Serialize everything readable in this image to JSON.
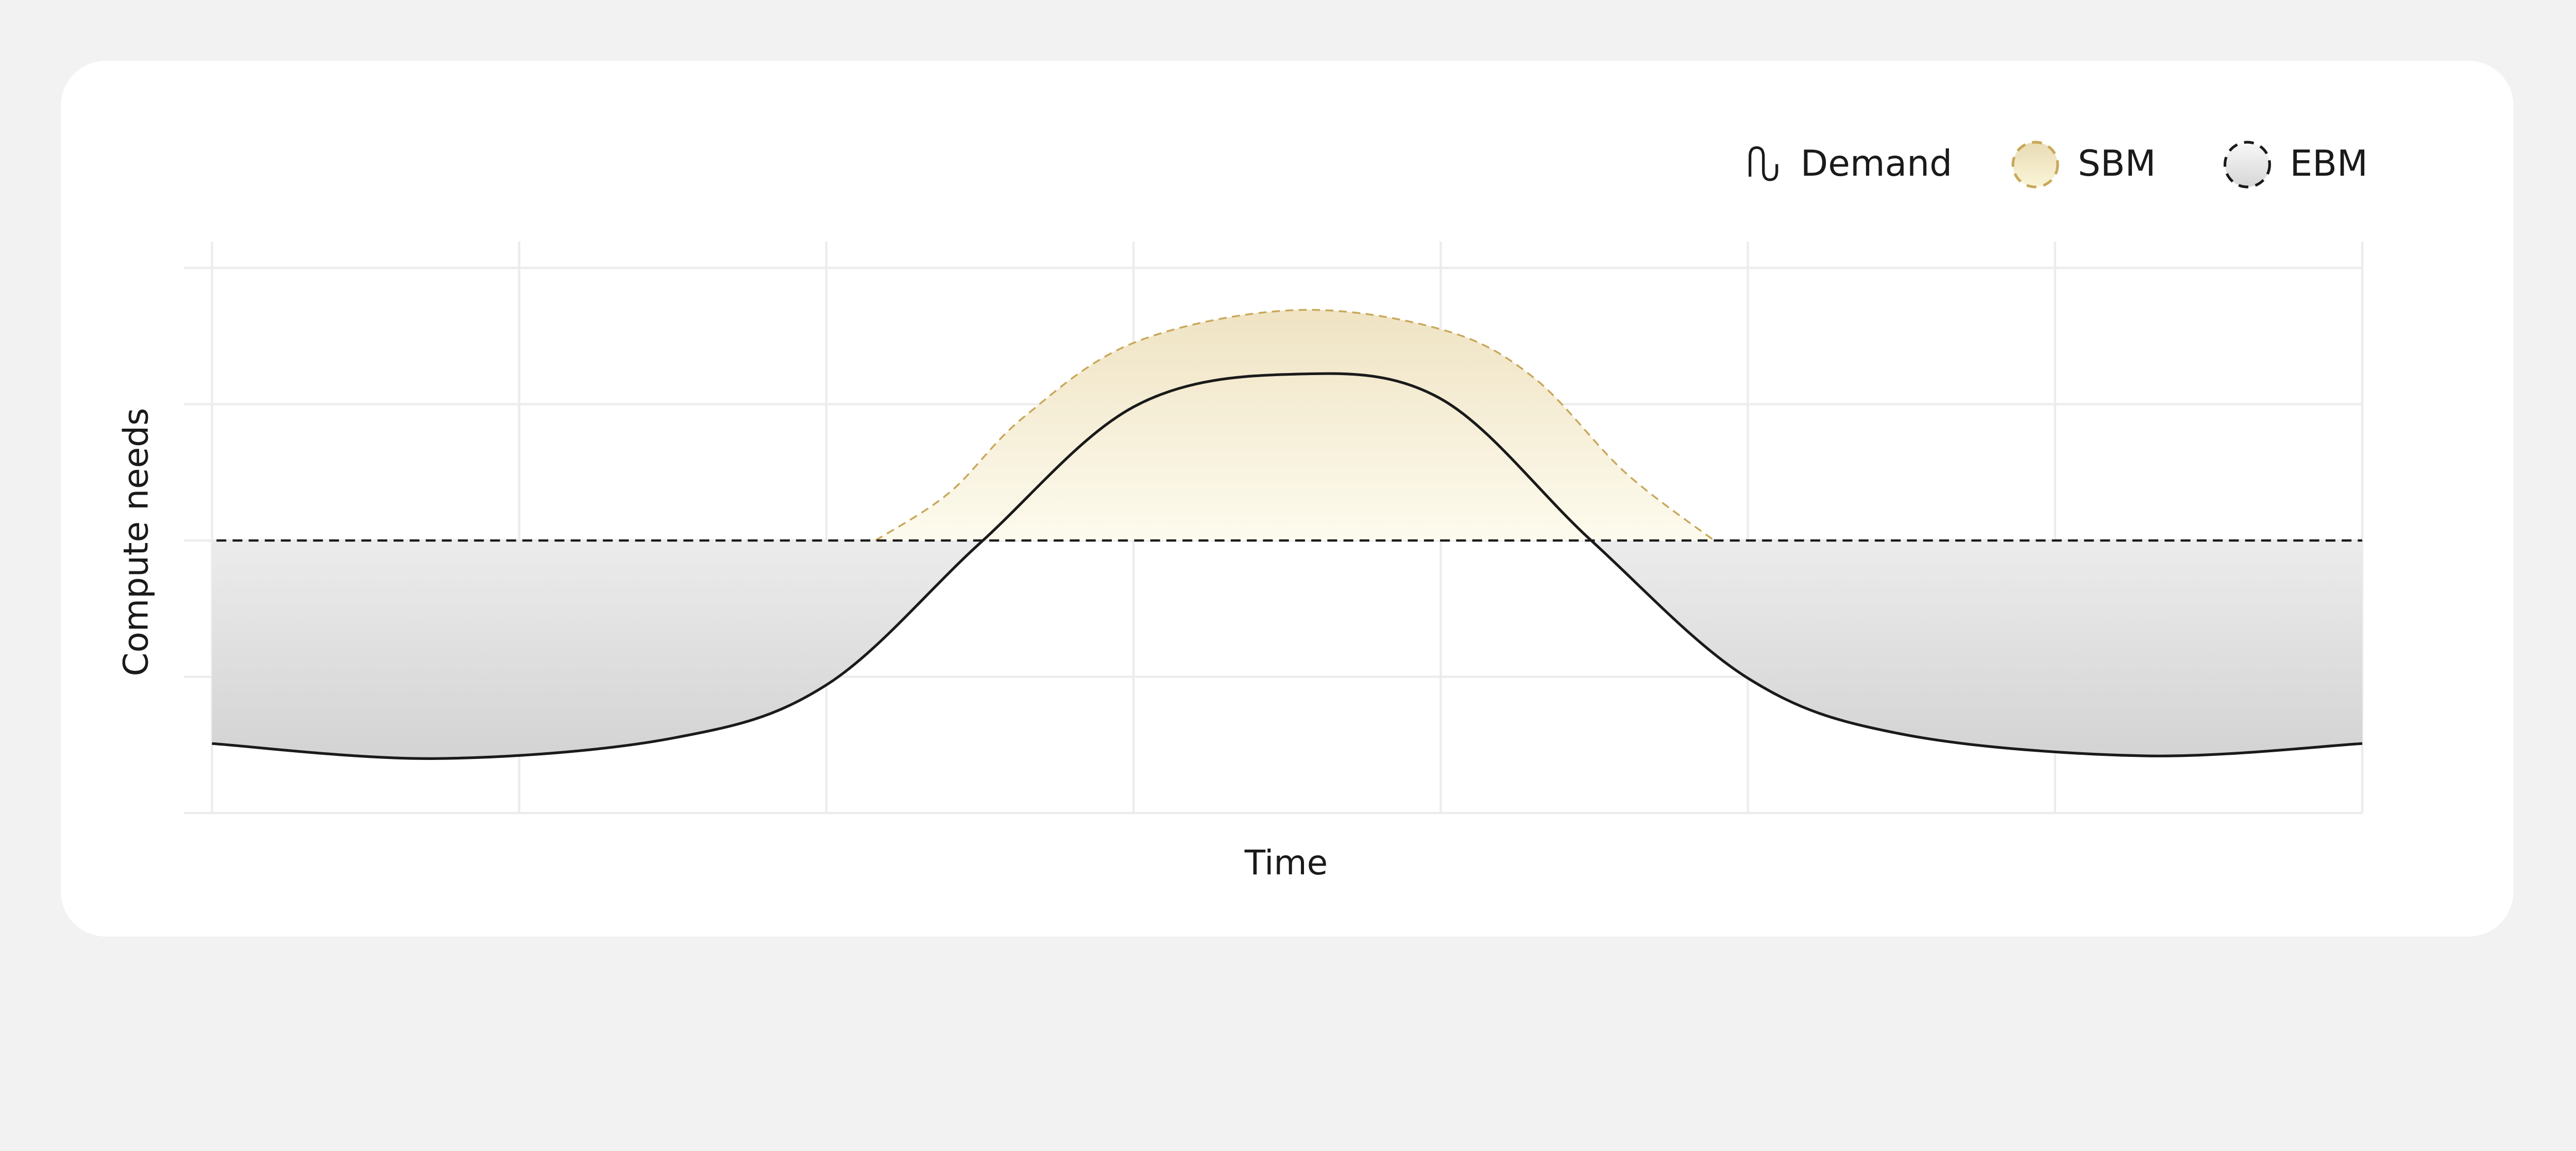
{
  "chart_data": {
    "type": "area",
    "title": "",
    "xlabel": "Time",
    "ylabel": "Compute needs",
    "xlim": [
      0,
      7
    ],
    "ylim": [
      0,
      4
    ],
    "grid": true,
    "tick_labels": false,
    "legend_placement": "top-right",
    "legend": [
      {
        "name": "Demand",
        "icon": "wave-line-icon"
      },
      {
        "name": "SBM",
        "icon": "dashed-circle-gold-icon"
      },
      {
        "name": "EBM",
        "icon": "dashed-circle-gray-icon"
      }
    ],
    "series": [
      {
        "name": "Demand",
        "style": "solid-line",
        "color": "#1a1a1a",
        "x": [
          0,
          0.73,
          1.5,
          2,
          2.5,
          3,
          3.52,
          4,
          4.49,
          5,
          5.5,
          6.29,
          7
        ],
        "y": [
          0.51,
          0.4,
          0.55,
          0.94,
          1.98,
          2.98,
          3.22,
          3.04,
          2.0,
          0.99,
          0.58,
          0.42,
          0.51
        ]
      },
      {
        "name": "SBM",
        "style": "dashed-area-above-baseline",
        "color": "#c9a85a",
        "x": [
          2.16,
          2.4,
          2.64,
          3.0,
          3.52,
          4.0,
          4.3,
          4.6,
          4.89
        ],
        "y": [
          2.0,
          2.35,
          2.9,
          3.45,
          3.69,
          3.55,
          3.2,
          2.5,
          2.0
        ]
      },
      {
        "name": "EBM",
        "style": "dashed-horizontal-line",
        "color": "#1a1a1a",
        "x": [
          0,
          7
        ],
        "y": [
          2,
          2
        ]
      }
    ]
  },
  "colors": {
    "background": "#f1f2f1",
    "card": "#ffffff",
    "grid": "#ececec",
    "sbm_fill_top": "#efe3c3",
    "sbm_fill_bottom": "#fdfbee",
    "ebm_fill_top": "#ffffff",
    "ebm_fill_bottom": "#d3d3d3"
  }
}
